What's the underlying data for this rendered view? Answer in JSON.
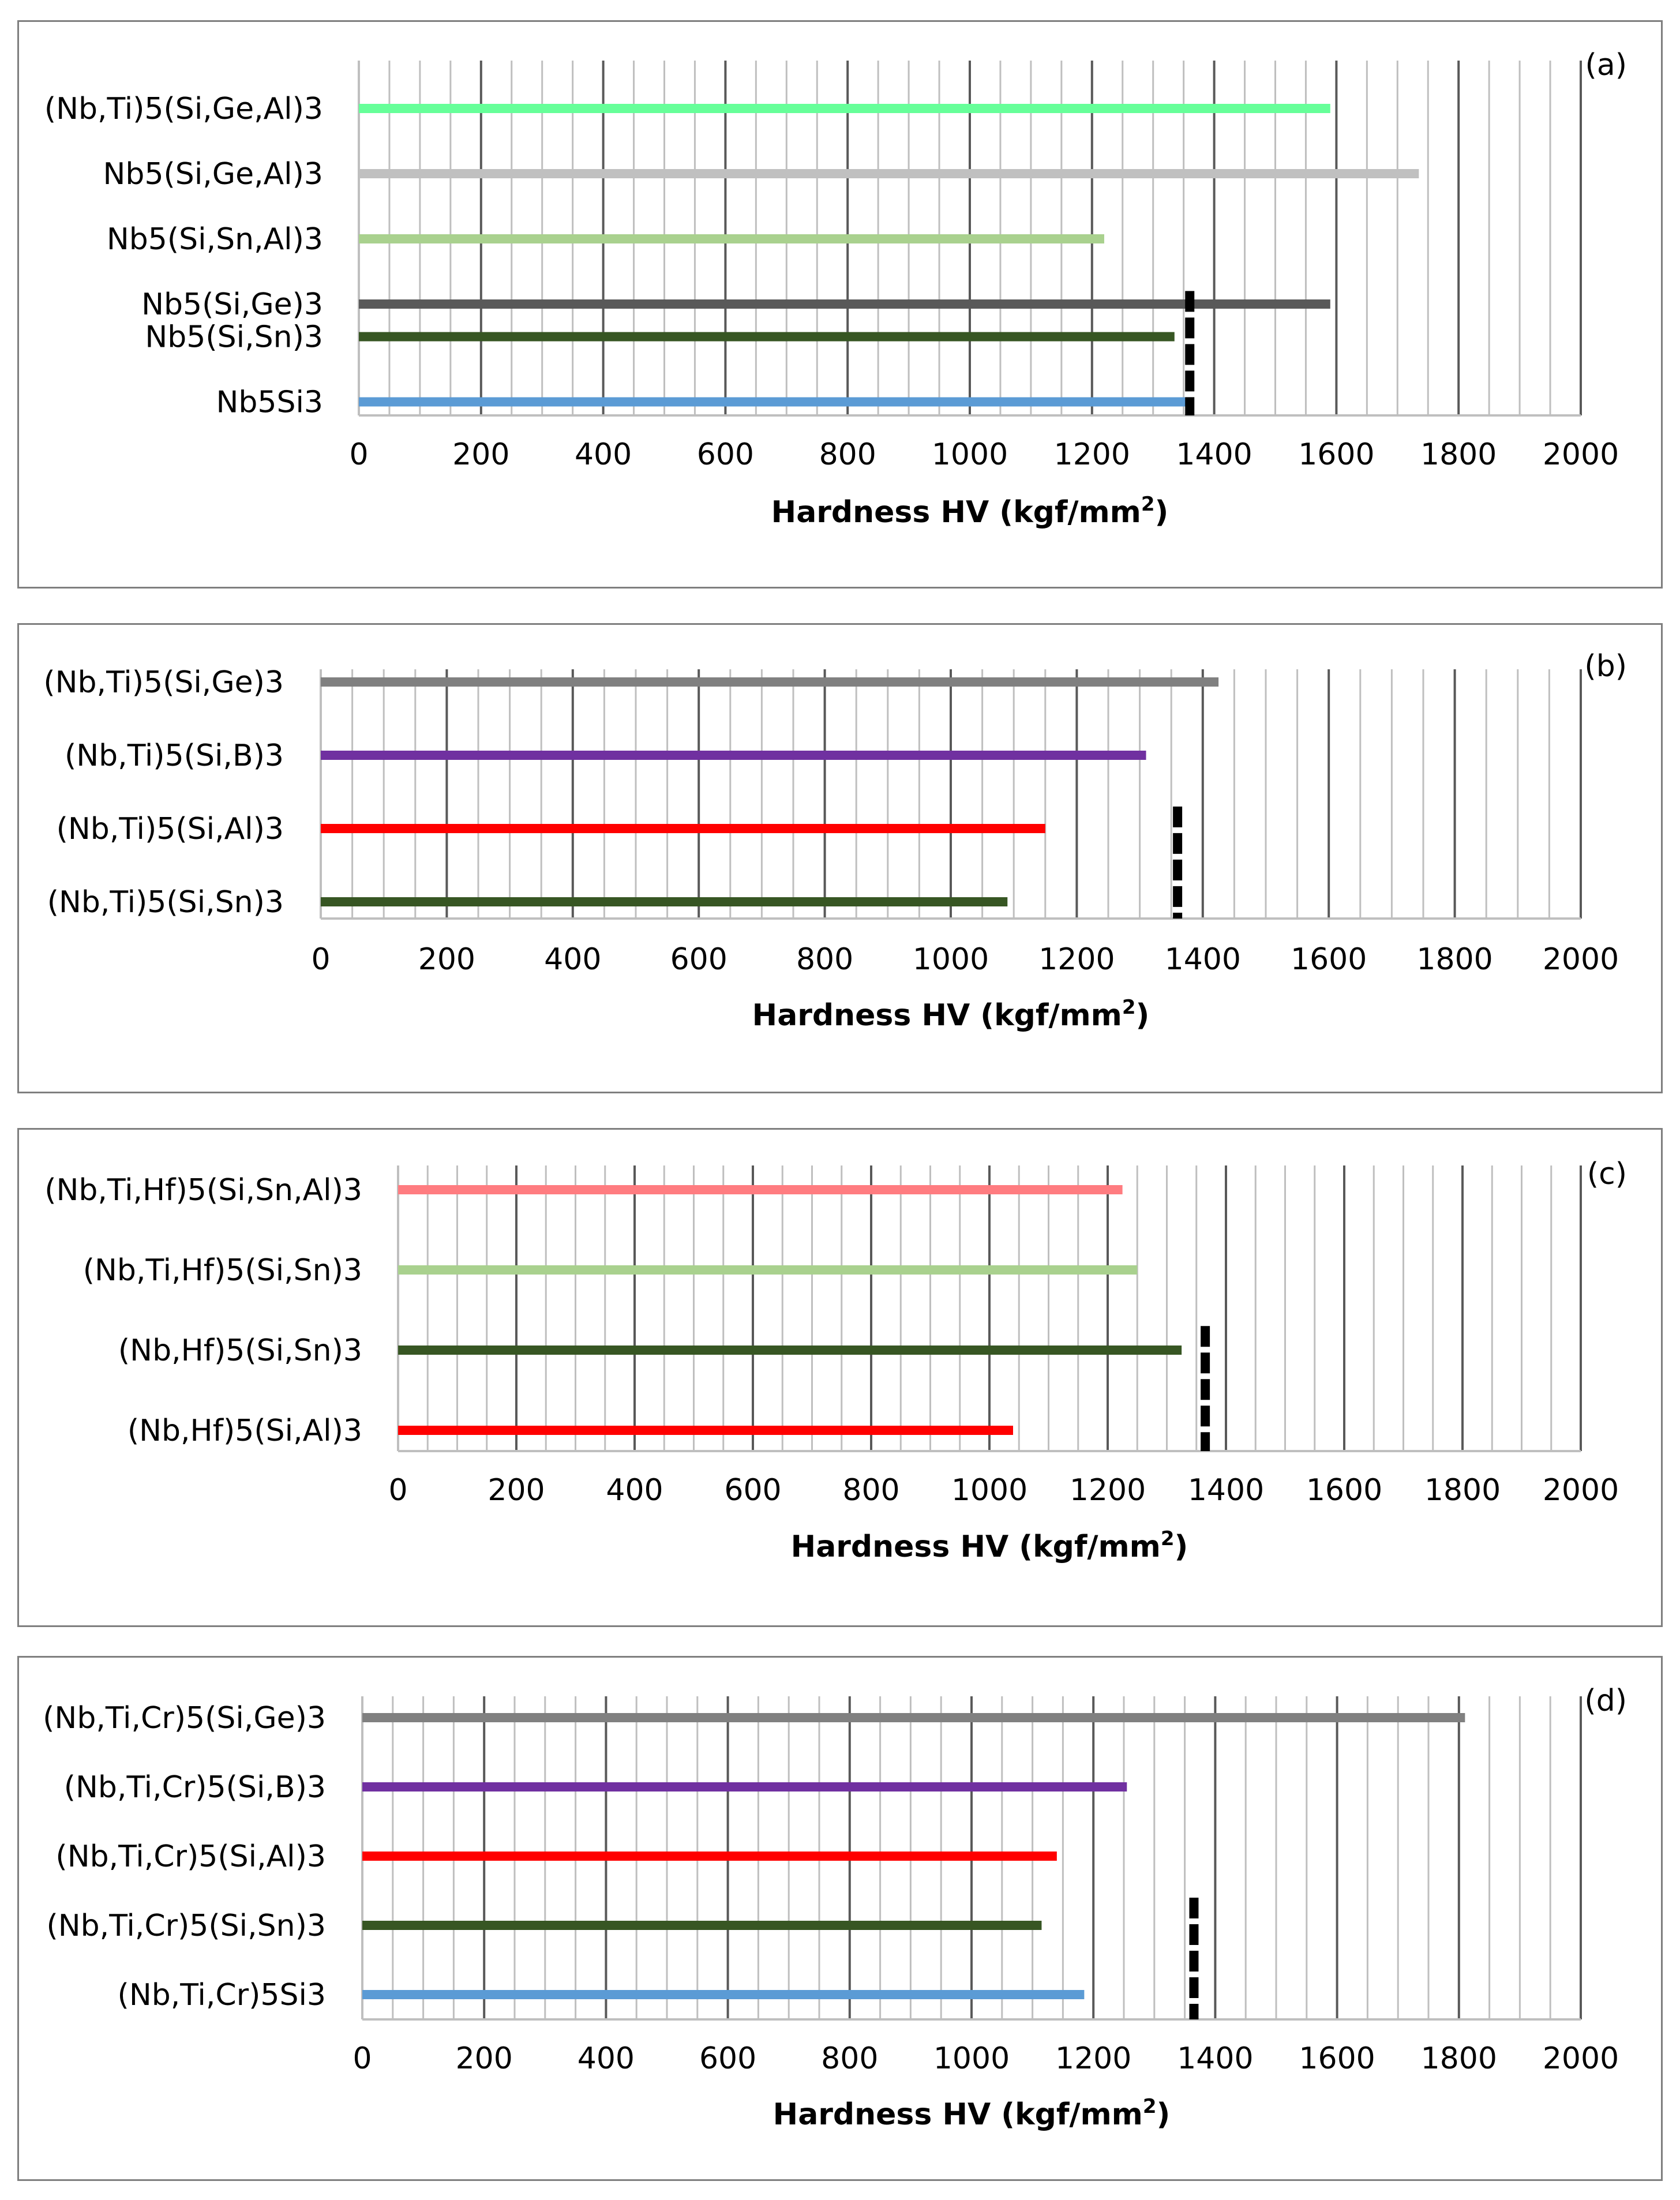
{
  "figure": {
    "xlabel_main": "Hardness HV (kgf/mm",
    "xlabel_sup": "2",
    "xlabel_end": ")",
    "reference_line_color": "#000000",
    "grid_major_color": "#595959",
    "grid_minor_color": "#bfbfbf"
  },
  "chart_data": [
    {
      "type": "bar",
      "orientation": "horizontal",
      "panel": "(a)",
      "title": "",
      "xlabel": "Hardness HV (kgf/mm2)",
      "xlim": [
        0,
        2000
      ],
      "xticks": [
        "0",
        "200",
        "400",
        "600",
        "800",
        "1000",
        "1200",
        "1400",
        "1600",
        "1800",
        "2000"
      ],
      "reference_value": 1360,
      "categories": [
        "(Nb,Ti)5(Si,Ge,Al)3",
        "Nb5(Si,Ge,Al)3",
        "Nb5(Si,Sn,Al)3",
        "Nb5(Si,Ge)3",
        "Nb5(Si,Sn)3",
        "Nb5Si3"
      ],
      "values": [
        1590,
        1735,
        1220,
        1590,
        1335,
        1355
      ],
      "colors": [
        "#66ff99",
        "#c0c0c0",
        "#a9d18e",
        "#595959",
        "#375623",
        "#5b9bd5"
      ],
      "row_pos": [
        0,
        1,
        2,
        3,
        3.5,
        4.5
      ]
    },
    {
      "type": "bar",
      "orientation": "horizontal",
      "panel": "(b)",
      "title": "",
      "xlabel": "Hardness HV (kgf/mm2)",
      "xlim": [
        0,
        2000
      ],
      "xticks": [
        "0",
        "200",
        "400",
        "600",
        "800",
        "1000",
        "1200",
        "1400",
        "1600",
        "1800",
        "2000"
      ],
      "reference_value": 1360,
      "categories": [
        "(Nb,Ti)5(Si,Ge)3",
        "(Nb,Ti)5(Si,B)3",
        "(Nb,Ti)5(Si,Al)3",
        "(Nb,Ti)5(Si,Sn)3"
      ],
      "values": [
        1425,
        1310,
        1150,
        1090
      ],
      "colors": [
        "#808080",
        "#7030a0",
        "#ff0000",
        "#375623"
      ],
      "row_pos": [
        0,
        1,
        2,
        3
      ]
    },
    {
      "type": "bar",
      "orientation": "horizontal",
      "panel": "(c)",
      "title": "",
      "xlabel": "Hardness HV (kgf/mm2)",
      "xlim": [
        0,
        2000
      ],
      "xticks": [
        "0",
        "200",
        "400",
        "600",
        "800",
        "1000",
        "1200",
        "1400",
        "1600",
        "1800",
        "2000"
      ],
      "reference_value": 1365,
      "categories": [
        "(Nb,Ti,Hf)5(Si,Sn,Al)3",
        "(Nb,Ti,Hf)5(Si,Sn)3",
        "(Nb,Hf)5(Si,Sn)3",
        "(Nb,Hf)5(Si,Al)3"
      ],
      "values": [
        1225,
        1250,
        1325,
        1040
      ],
      "colors": [
        "#ff7c80",
        "#a9d18e",
        "#375623",
        "#ff0000"
      ],
      "row_pos": [
        0,
        1,
        2,
        3
      ]
    },
    {
      "type": "bar",
      "orientation": "horizontal",
      "panel": "(d)",
      "title": "",
      "xlabel": "Hardness HV (kgf/mm2)",
      "xlim": [
        0,
        2000
      ],
      "xticks": [
        "0",
        "200",
        "400",
        "600",
        "800",
        "1000",
        "1200",
        "1400",
        "1600",
        "1800",
        "2000"
      ],
      "reference_value": 1365,
      "categories": [
        "(Nb,Ti,Cr)5(Si,Ge)3",
        "(Nb,Ti,Cr)5(Si,B)3",
        "(Nb,Ti,Cr)5(Si,Al)3",
        "(Nb,Ti,Cr)5(Si,Sn)3",
        "(Nb,Ti,Cr)5Si3"
      ],
      "values": [
        1810,
        1255,
        1140,
        1115,
        1185
      ],
      "colors": [
        "#808080",
        "#7030a0",
        "#ff0000",
        "#375623",
        "#5b9bd5"
      ],
      "row_pos": [
        0,
        1,
        2,
        3,
        4
      ]
    }
  ]
}
